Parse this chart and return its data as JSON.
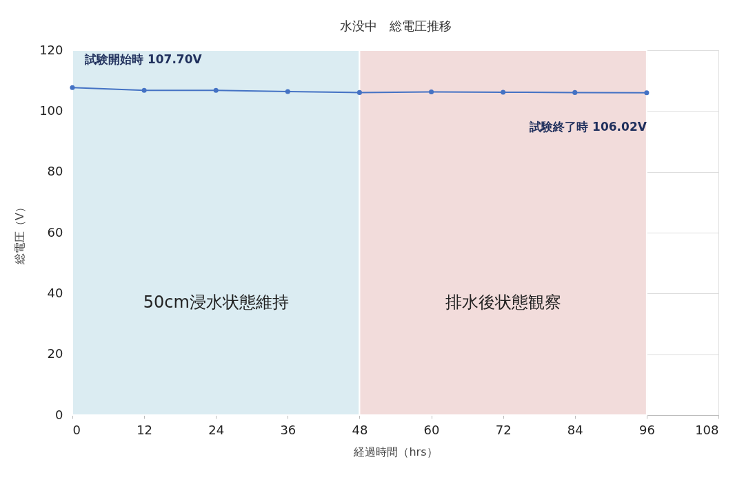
{
  "chart_data": {
    "type": "line",
    "title": "水没中　総電圧推移",
    "xlabel": "経過時間（hrs）",
    "ylabel": "総電圧（V）",
    "x": [
      0,
      12,
      24,
      36,
      48,
      60,
      72,
      84,
      96
    ],
    "series": [
      {
        "color": "#4472c4",
        "values": [
          107.7,
          106.8,
          106.8,
          106.4,
          106.1,
          106.3,
          106.2,
          106.1,
          106.02
        ]
      }
    ],
    "xlim": [
      0,
      108
    ],
    "xticks": [
      0,
      12,
      24,
      36,
      48,
      60,
      72,
      84,
      96,
      108
    ],
    "ylim": [
      0,
      120
    ],
    "yticks": [
      0,
      20,
      40,
      60,
      80,
      100,
      120
    ],
    "bands": [
      {
        "axis": "x",
        "from": 0,
        "to": 48,
        "label": "50cm浸水状態維持",
        "color": "#dbecf2"
      },
      {
        "axis": "x",
        "from": 48,
        "to": 96,
        "label": "排水後状態観察",
        "color": "#f2dcdb"
      }
    ],
    "annotations": [
      {
        "text": "試験開始時 107.70V",
        "x": 0,
        "y": 107.7
      },
      {
        "text": "試験終了時 106.02V",
        "x": 96,
        "y": 106.02
      }
    ],
    "grid": true,
    "marker": "circle",
    "line_style": "solid"
  }
}
